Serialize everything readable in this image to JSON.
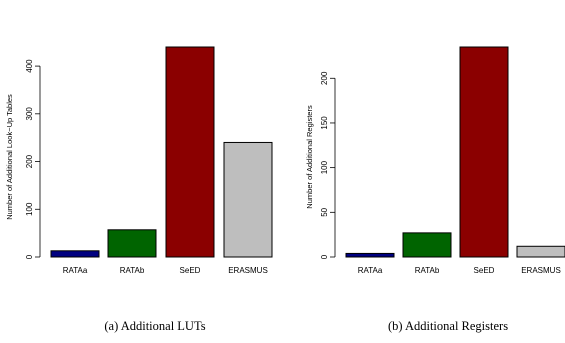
{
  "chart_data": [
    {
      "type": "bar",
      "title": "",
      "caption": "(a)  Additional LUTs",
      "xlabel": "",
      "ylabel": "Number of Additional Look−Up Tables",
      "categories": [
        "RATAa",
        "RATAb",
        "SeED",
        "ERASMUS"
      ],
      "values": [
        13,
        57,
        440,
        240
      ],
      "ylim": [
        0,
        440
      ],
      "yticks": [
        0,
        100,
        200,
        300,
        400
      ],
      "colors": [
        "#000080",
        "#006400",
        "#8b0000",
        "#bebebe"
      ],
      "grid": false
    },
    {
      "type": "bar",
      "title": "",
      "caption": "(b)  Additional Registers",
      "xlabel": "",
      "ylabel": "Number of Additional Registers",
      "categories": [
        "RATAa",
        "RATAb",
        "SeED",
        "ERASMUS"
      ],
      "values": [
        4,
        27,
        235,
        12
      ],
      "ylim": [
        0,
        235
      ],
      "yticks": [
        0,
        50,
        100,
        150,
        200
      ],
      "colors": [
        "#000080",
        "#006400",
        "#8b0000",
        "#bebebe"
      ],
      "grid": false
    }
  ]
}
